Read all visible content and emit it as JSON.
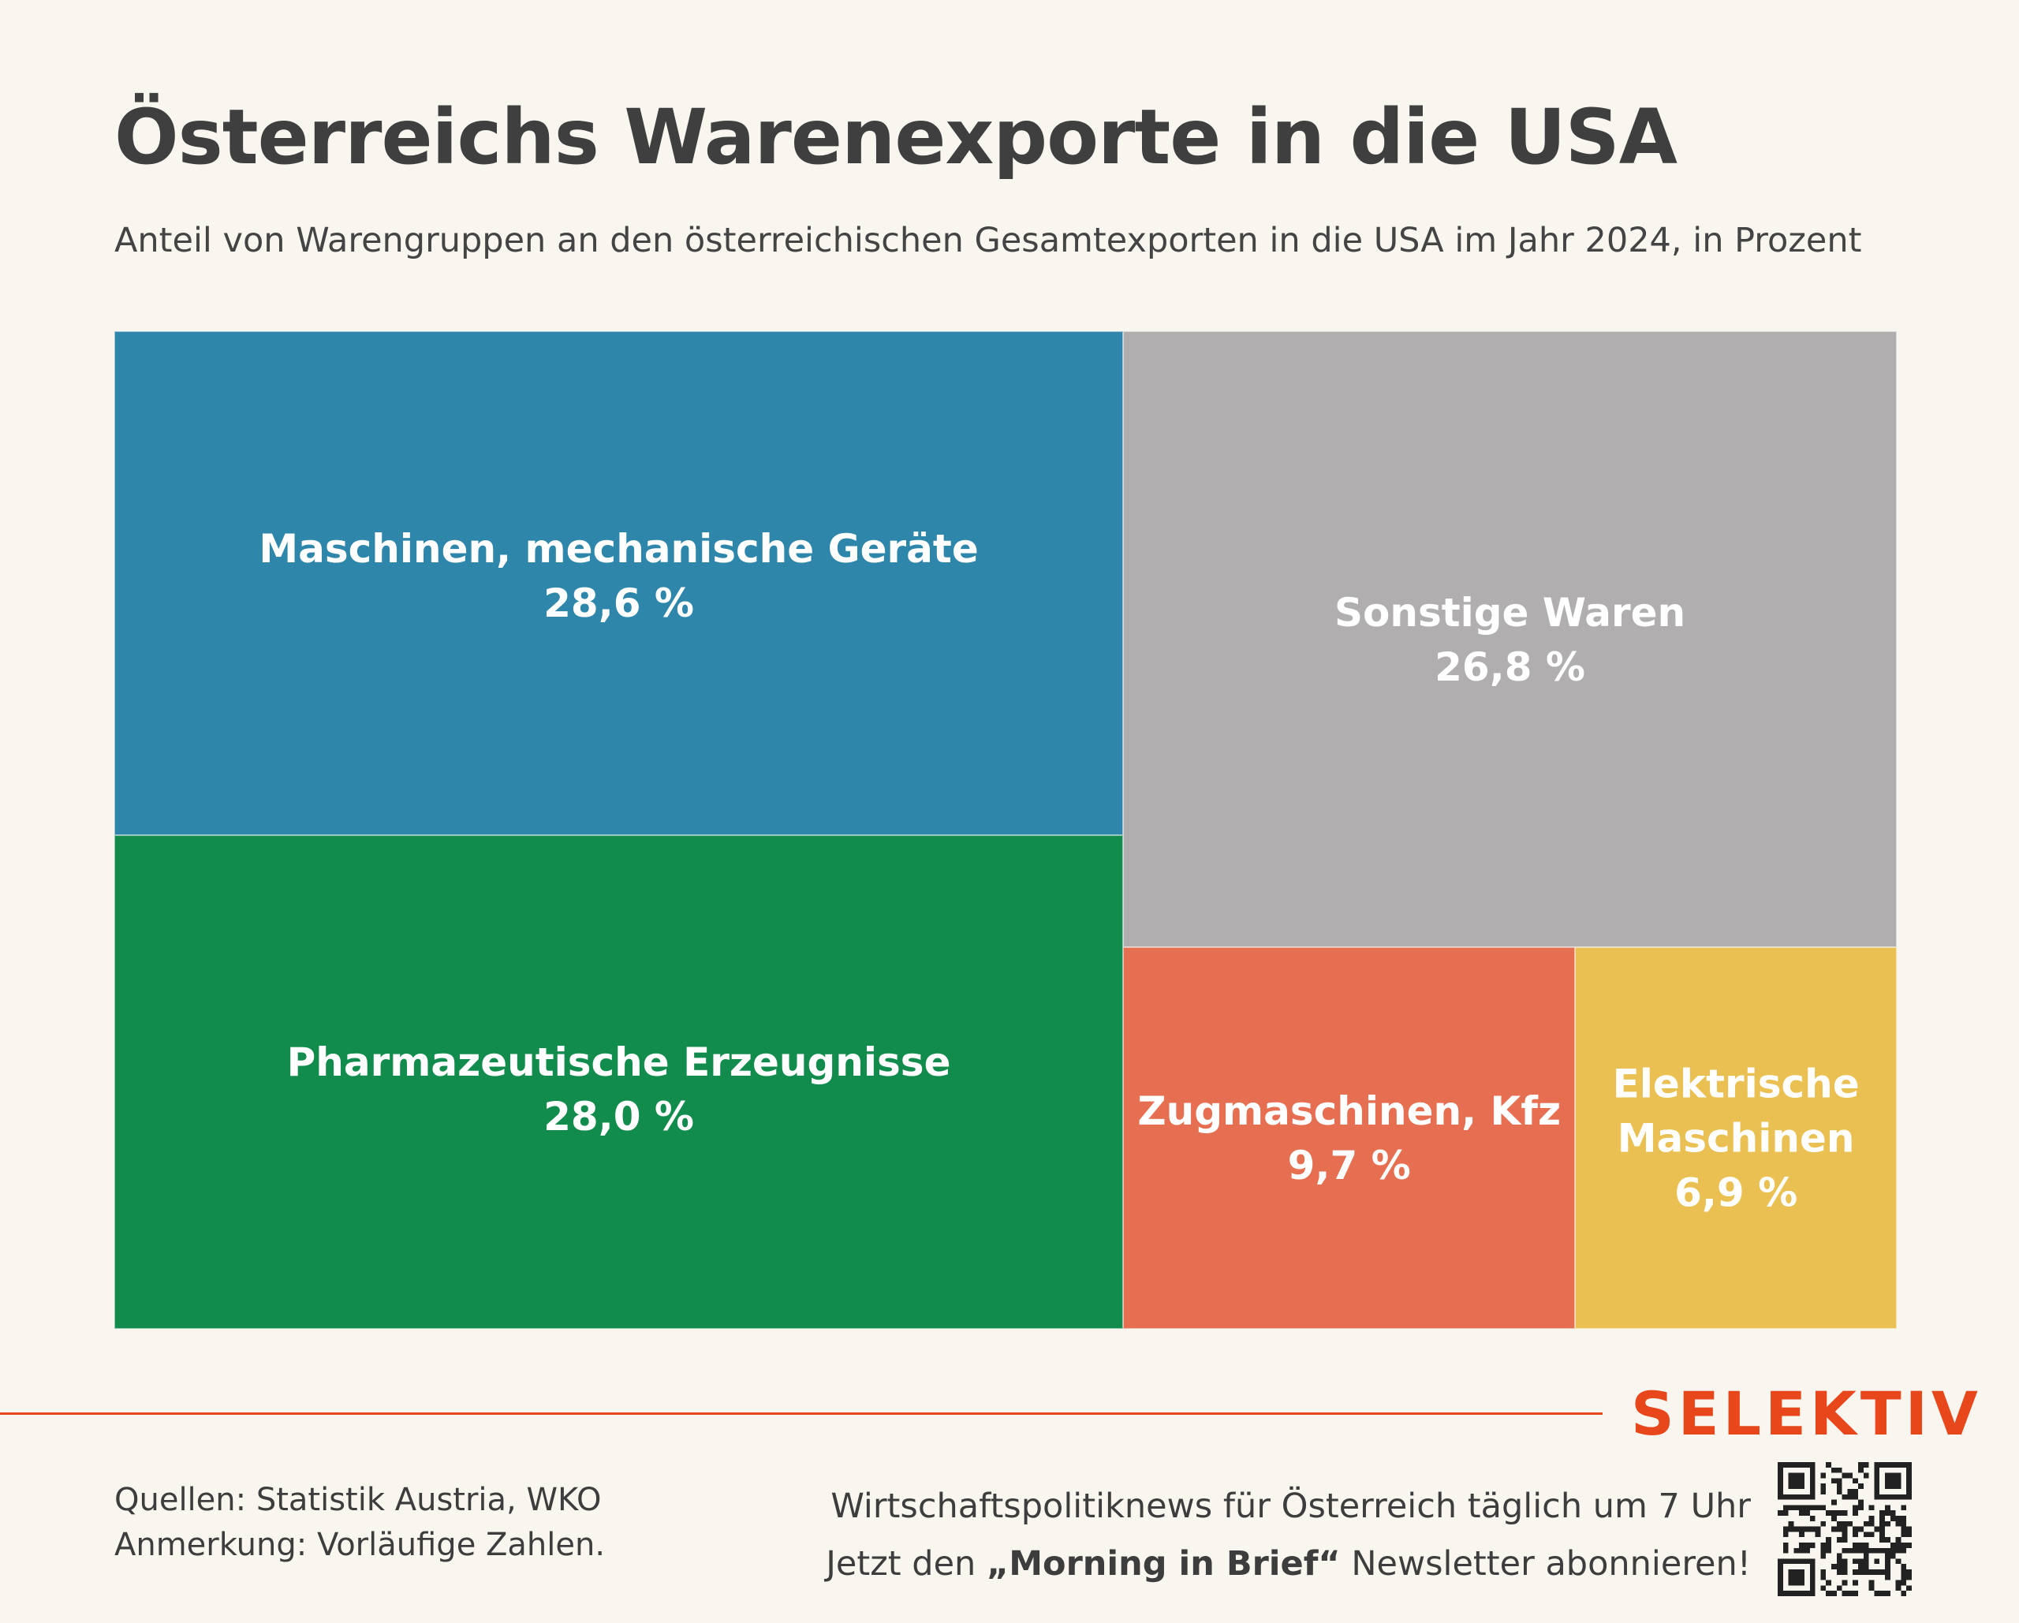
{
  "title": "Österreichs Warenexporte in die USA",
  "subtitle": "Anteil von Warengruppen an den österreichischen Gesamtexporten in die USA im Jahr 2024, in Prozent",
  "chart_data": {
    "type": "treemap",
    "unit": "%",
    "items": [
      {
        "name": "Maschinen, mechanische Geräte",
        "value": 28.6,
        "label": "28,6 %",
        "color": "#2e86ab"
      },
      {
        "name": "Pharmazeutische Erzeugnisse",
        "value": 28.0,
        "label": "28,0 %",
        "color": "#128c4d"
      },
      {
        "name": "Sonstige Waren",
        "value": 26.8,
        "label": "26,8 %",
        "color": "#b0aeae"
      },
      {
        "name": "Zugmaschinen, Kfz",
        "value": 9.7,
        "label": "9,7 %",
        "color": "#e76f51"
      },
      {
        "name": "Elektrische\nMaschinen",
        "value": 6.9,
        "label": "6,9 %",
        "color": "#e9c051"
      }
    ]
  },
  "footer": {
    "sources": "Quellen: Statistik Austria, WKO",
    "note": "Anmerkung: Vorläufige Zahlen.",
    "promo_line1": "Wirtschaftspolitiknews für Österreich täglich um 7 Uhr",
    "promo_prefix": "Jetzt den ",
    "promo_bold": "„Morning in Brief“",
    "promo_suffix": " Newsletter abonnieren!",
    "brand": "SELEKTIV",
    "accent_color": "#e8471c"
  }
}
